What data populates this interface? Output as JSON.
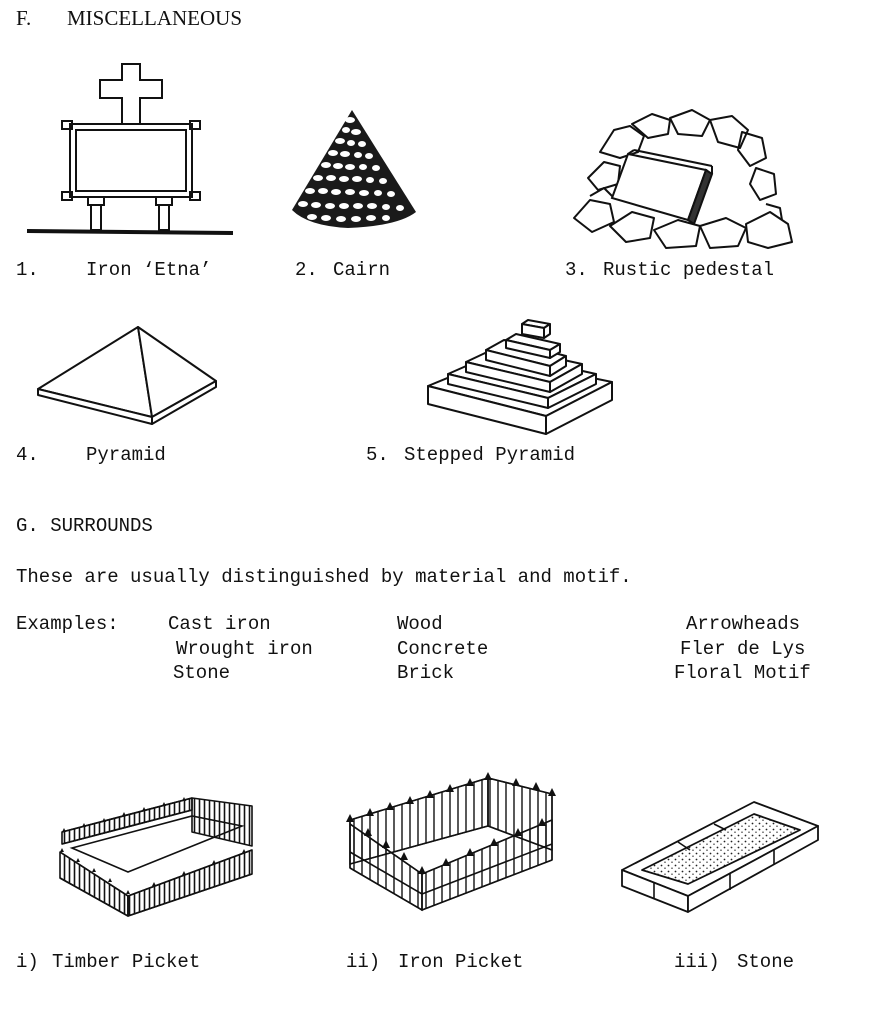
{
  "section_f": {
    "letter": "F.",
    "title": "MISCELLANEOUS",
    "items": [
      {
        "num": "1.",
        "label": "Iron ‘Etna’"
      },
      {
        "num": "2.",
        "label": "Cairn"
      },
      {
        "num": "3.",
        "label": "Rustic pedestal"
      },
      {
        "num": "4.",
        "label": "Pyramid"
      },
      {
        "num": "5.",
        "label": "Stepped Pyramid"
      }
    ]
  },
  "section_g": {
    "heading": "G. SURROUNDS",
    "intro": "These are usually distinguished by material and motif.",
    "examples_label": "Examples:",
    "materials_col1": [
      "Cast iron",
      "Wrought iron",
      "Stone"
    ],
    "materials_col2": [
      "Wood",
      "Concrete",
      "Brick"
    ],
    "motifs": [
      "Arrowheads",
      "Fler de Lys",
      "Floral Motif"
    ],
    "surrounds": [
      {
        "num": "i)",
        "label": "Timber Picket"
      },
      {
        "num": "ii)",
        "label": "Iron Picket"
      },
      {
        "num": "iii)",
        "label": "Stone"
      }
    ]
  },
  "icons": [
    "iron-etna-icon",
    "cairn-icon",
    "rustic-pedestal-icon",
    "pyramid-icon",
    "stepped-pyramid-icon",
    "timber-picket-icon",
    "iron-picket-icon",
    "stone-surround-icon"
  ]
}
